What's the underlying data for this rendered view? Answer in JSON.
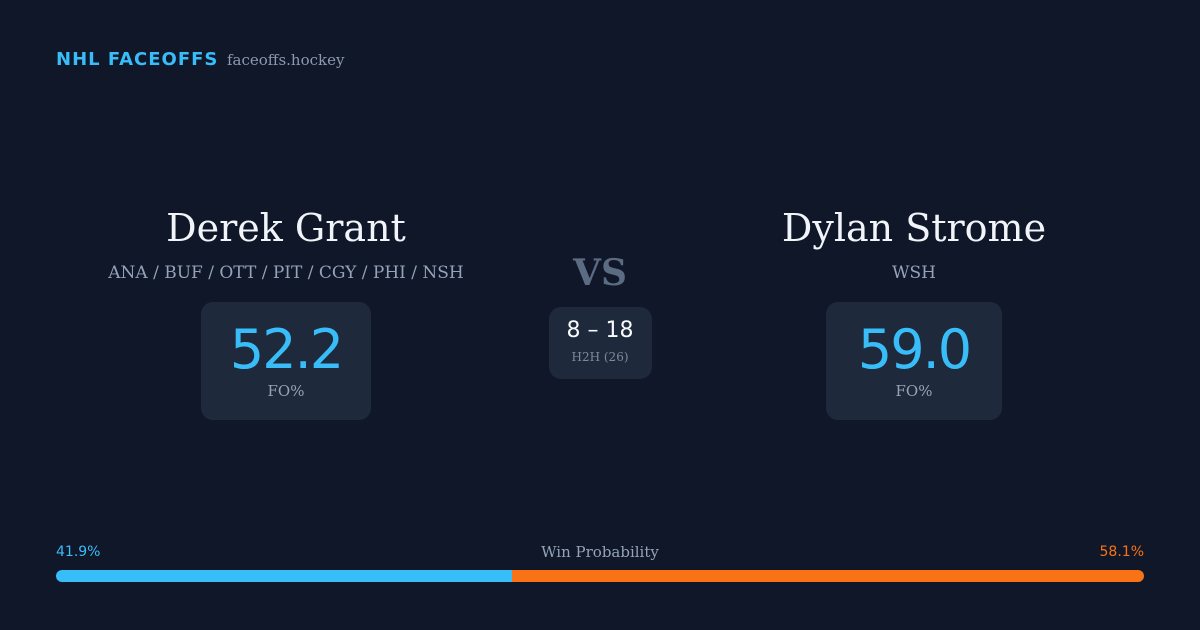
{
  "header": {
    "title": "NHL FACEOFFS",
    "site": "faceoffs.hockey"
  },
  "players": [
    {
      "name": "Derek Grant",
      "teams": "ANA / BUF / OTT / PIT / CGY / PHI / NSH",
      "fo_pct": "52.2",
      "fo_label": "FO%"
    },
    {
      "name": "Dylan Strome",
      "teams": "WSH",
      "fo_pct": "59.0",
      "fo_label": "FO%"
    }
  ],
  "vs": "VS",
  "h2h": {
    "score": "8 – 18",
    "label": "H2H (26)"
  },
  "win_probability": {
    "label": "Win Probability",
    "values": [
      41.9,
      58.1
    ],
    "value_labels": [
      "41.9%",
      "58.1%"
    ],
    "colors": [
      "#38bdf8",
      "#f97316"
    ]
  }
}
